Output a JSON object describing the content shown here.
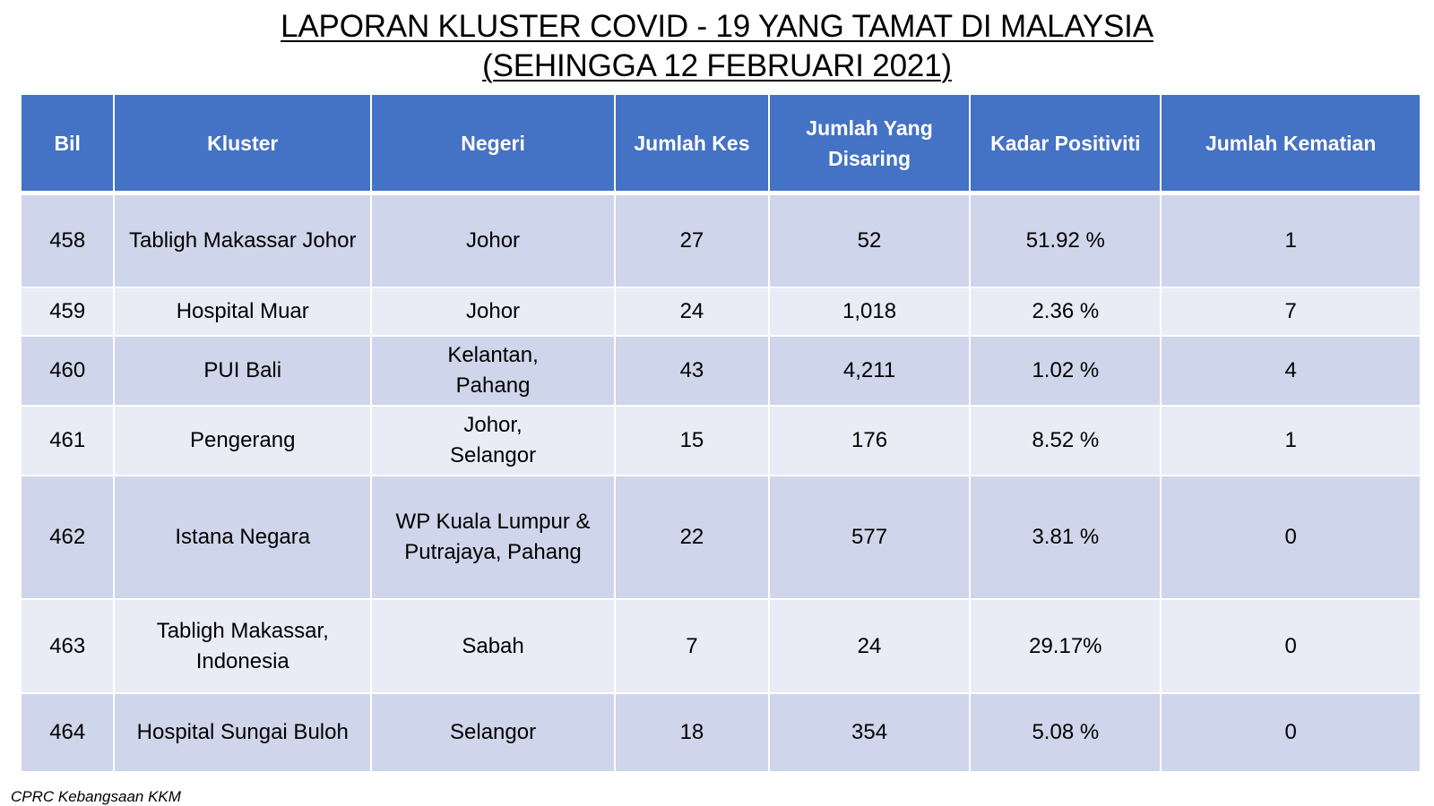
{
  "title": {
    "line1": "LAPORAN KLUSTER COVID - 19 YANG TAMAT DI MALAYSIA",
    "line2": "(SEHINGGA 12 FEBRUARI 2021)"
  },
  "table": {
    "headers": [
      "Bil",
      "Kluster",
      "Negeri",
      "Jumlah Kes",
      "Jumlah Yang Disaring",
      "Kadar Positiviti",
      "Jumlah Kematian"
    ],
    "rows": [
      {
        "bil": "458",
        "kluster": "Tabligh Makassar Johor",
        "negeri": "Johor",
        "kes": "27",
        "disaring": "52",
        "positiviti": "51.92 %",
        "kematian": "1"
      },
      {
        "bil": "459",
        "kluster": "Hospital Muar",
        "negeri": "Johor",
        "kes": "24",
        "disaring": "1,018",
        "positiviti": "2.36 %",
        "kematian": "7"
      },
      {
        "bil": "460",
        "kluster": "PUI Bali",
        "negeri": "Kelantan, Pahang",
        "kes": "43",
        "disaring": "4,211",
        "positiviti": "1.02 %",
        "kematian": "4"
      },
      {
        "bil": "461",
        "kluster": "Pengerang",
        "negeri": "Johor, Selangor",
        "kes": "15",
        "disaring": "176",
        "positiviti": "8.52 %",
        "kematian": "1"
      },
      {
        "bil": "462",
        "kluster": "Istana Negara",
        "negeri": "WP Kuala Lumpur & Putrajaya, Pahang",
        "kes": "22",
        "disaring": "577",
        "positiviti": "3.81 %",
        "kematian": "0"
      },
      {
        "bil": "463",
        "kluster": "Tabligh Makassar, Indonesia",
        "negeri": "Sabah",
        "kes": "7",
        "disaring": "24",
        "positiviti": "29.17%",
        "kematian": "0"
      },
      {
        "bil": "464",
        "kluster": "Hospital Sungai Buloh",
        "negeri": "Selangor",
        "kes": "18",
        "disaring": "354",
        "positiviti": "5.08 %",
        "kematian": "0"
      }
    ]
  },
  "footer": {
    "source": "CPRC Kebangsaan KKM"
  },
  "colors": {
    "header_bg": "#4472c4",
    "row_dark": "#cfd5ea",
    "row_light": "#e9ebf5"
  }
}
